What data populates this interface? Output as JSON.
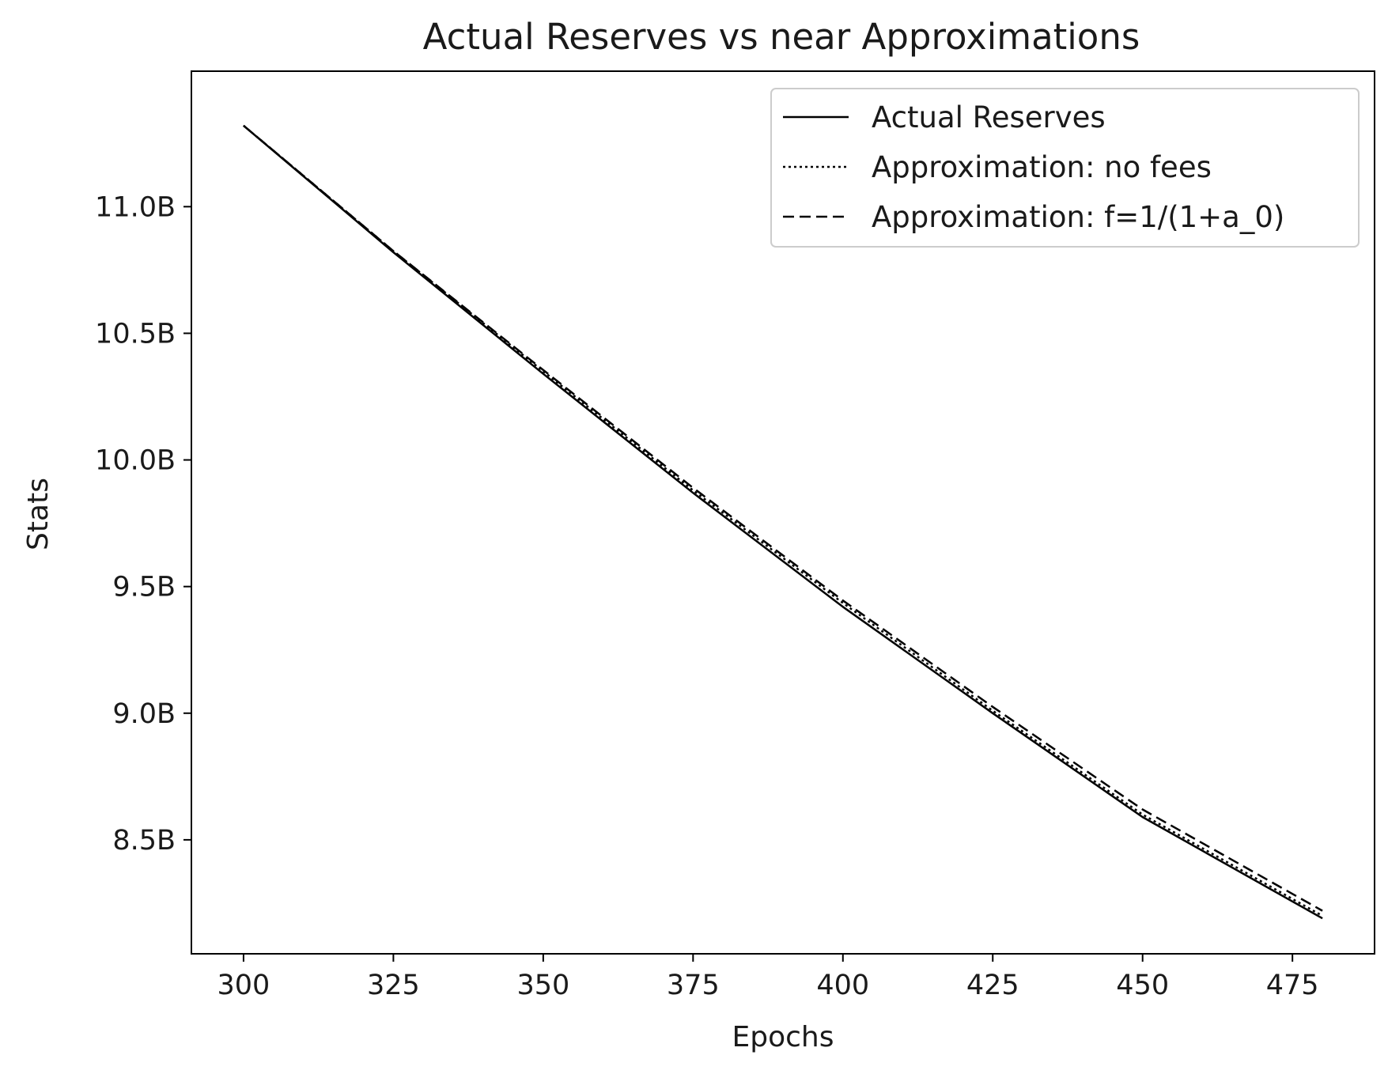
{
  "chart_data": {
    "type": "line",
    "title": "Actual Reserves vs near Approximations",
    "xlabel": "Epochs",
    "ylabel": "Stats",
    "xlim": [
      291.3,
      488.7
    ],
    "ylim": [
      8050000000.0,
      11535000000.0
    ],
    "x_ticks": [
      300,
      325,
      350,
      375,
      400,
      425,
      450,
      475
    ],
    "x_tick_labels": [
      "300",
      "325",
      "350",
      "375",
      "400",
      "425",
      "450",
      "475"
    ],
    "y_ticks": [
      8500000000.0,
      9000000000.0,
      9500000000.0,
      10000000000.0,
      10500000000.0,
      11000000000.0
    ],
    "y_tick_labels": [
      "8.5B",
      "9.0B",
      "9.5B",
      "10.0B",
      "10.5B",
      "11.0B"
    ],
    "grid": false,
    "legend_position": "top-right",
    "line_color": "#000000",
    "x": [
      300,
      325,
      350,
      375,
      400,
      425,
      450,
      480
    ],
    "series": [
      {
        "name": "Actual Reserves",
        "style": "solid",
        "values": [
          11320000000.0,
          10820000000.0,
          10340000000.0,
          9870000000.0,
          9420000000.0,
          9000000000.0,
          8590000000.0,
          8190000000.0
        ]
      },
      {
        "name": "Approximation: no fees",
        "style": "dotted",
        "values": [
          11320000000.0,
          10825000000.0,
          10350000000.0,
          9880000000.0,
          9435000000.0,
          9010000000.0,
          8600000000.0,
          8200000000.0
        ]
      },
      {
        "name": "Approximation: f=1/(1+a_0)",
        "style": "dashed",
        "values": [
          11320000000.0,
          10825000000.0,
          10355000000.0,
          9890000000.0,
          9445000000.0,
          9025000000.0,
          8620000000.0,
          8220000000.0
        ]
      }
    ]
  }
}
